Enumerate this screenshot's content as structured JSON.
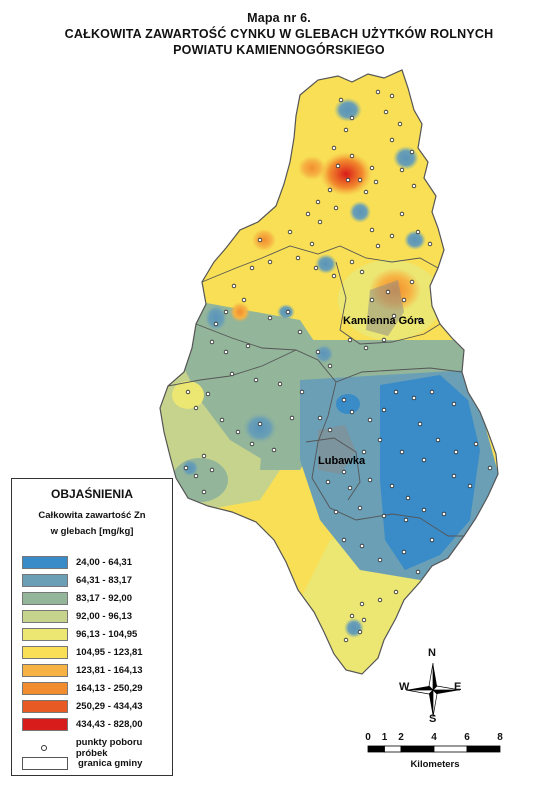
{
  "title": {
    "line1": "Mapa nr 6.",
    "line2": "CAŁKOWITA  ZAWARTOŚĆ  CYNKU  W  GLEBACH  UŻYTKÓW  ROLNYCH",
    "line3": "POWIATU  KAMIENNOGÓRSKIEGO"
  },
  "towns": {
    "kamienna_gora": "Kamienna Góra",
    "lubawka": "Lubawka"
  },
  "legend": {
    "title": "OBJAŚNIENIA",
    "subtitle1": "Całkowita zawartość Zn",
    "subtitle2": "w glebach [mg/kg]",
    "classes": [
      {
        "label": "24,00 - 64,31",
        "color": "#3a8cc8"
      },
      {
        "label": "64,31 - 83,17",
        "color": "#6a9fb5"
      },
      {
        "label": "83,17 - 92,00",
        "color": "#93b59a"
      },
      {
        "label": "92,00 - 96,13",
        "color": "#c6d38c"
      },
      {
        "label": "96,13 - 104,95",
        "color": "#ece673"
      },
      {
        "label": "104,95 - 123,81",
        "color": "#f8df55"
      },
      {
        "label": "123,81 - 164,13",
        "color": "#f6b343"
      },
      {
        "label": "164,13 - 250,29",
        "color": "#f28d2f"
      },
      {
        "label": "250,29 - 434,43",
        "color": "#e85a23"
      },
      {
        "label": "434,43 - 828,00",
        "color": "#d81b1b"
      }
    ],
    "points_label": "punkty poboru próbek",
    "boundary_label": "granica gminy"
  },
  "compass": {
    "n": "N",
    "s": "S",
    "e": "E",
    "w": "W"
  },
  "scale": {
    "ticks": [
      "0",
      "1",
      "2",
      "4",
      "6",
      "8"
    ],
    "tick_km": [
      0,
      1,
      2,
      4,
      6,
      8
    ],
    "unit": "Kilometers"
  }
}
